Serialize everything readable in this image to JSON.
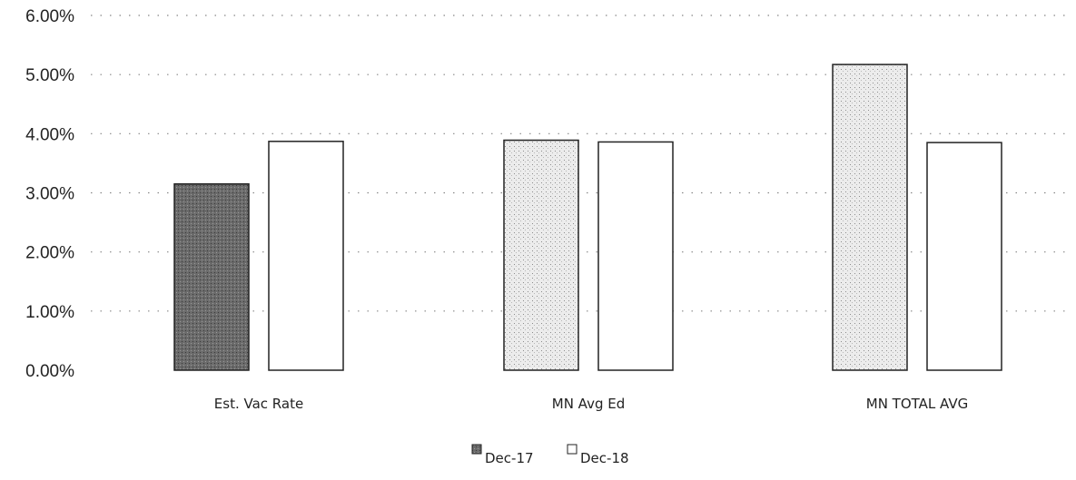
{
  "chart_data": {
    "type": "bar",
    "categories": [
      "Est. Vac Rate",
      "MN Avg Ed",
      "MN TOTAL AVG"
    ],
    "series": [
      {
        "name": "Dec-17",
        "values": [
          3.15,
          3.89,
          5.17
        ]
      },
      {
        "name": "Dec-18",
        "values": [
          3.87,
          3.86,
          3.85
        ]
      }
    ],
    "y_ticks": [
      "0.00%",
      "1.00%",
      "2.00%",
      "3.00%",
      "4.00%",
      "5.00%",
      "6.00%"
    ],
    "ylim": [
      0,
      6
    ],
    "y_unit": "%",
    "grid": true,
    "legend_position": "bottom-center",
    "colors": {
      "dec17_first": "#6b6b6b",
      "dec17_other": "#e4e4e4",
      "dec18": "#ffffff",
      "outline": "#222222"
    }
  }
}
